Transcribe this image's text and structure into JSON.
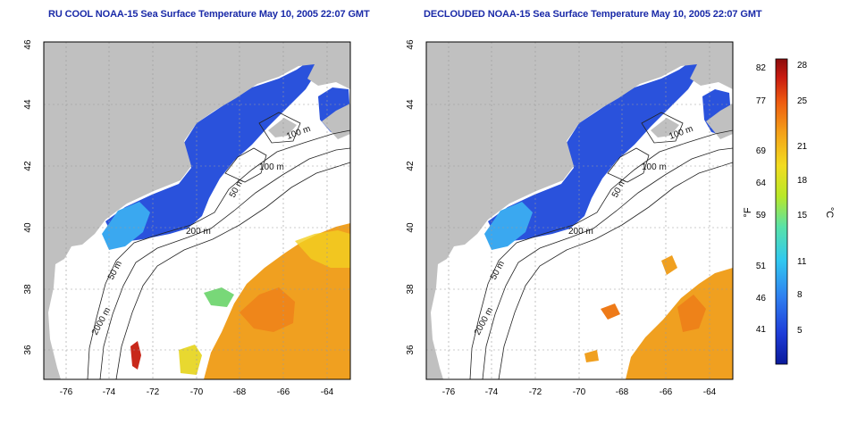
{
  "panels": [
    {
      "title": "RU COOL NOAA-15 Sea Surface Temperature May 10, 2005 22:07 GMT",
      "depth_labels": [
        "100 m",
        "100 m",
        "50 m",
        "200 m",
        "50 m",
        "2000 m"
      ]
    },
    {
      "title": "DECLOUDED NOAA-15 Sea Surface Temperature May 10, 2005 22:07 GMT",
      "depth_labels": [
        "100 m",
        "100 m",
        "50 m",
        "200 m",
        "50 m",
        "2000 m"
      ]
    }
  ],
  "x_ticks": [
    "-76",
    "-74",
    "-72",
    "-70",
    "-68",
    "-66",
    "-64"
  ],
  "y_ticks": [
    "36",
    "38",
    "40",
    "42",
    "44",
    "46"
  ],
  "colorbar": {
    "fahrenheit_unit": "°F",
    "celsius_unit": "°C",
    "fahrenheit_ticks": [
      "82",
      "77",
      "69",
      "64",
      "59",
      "51",
      "46",
      "41"
    ],
    "celsius_ticks": [
      "28",
      "25",
      "21",
      "18",
      "15",
      "11",
      "8",
      "5"
    ],
    "colors": [
      "#0a1a9a",
      "#1e3cd8",
      "#2f7ff0",
      "#30c8f0",
      "#58e2a8",
      "#b8e828",
      "#f2dc20",
      "#f4a018",
      "#ee5a10",
      "#c81a10",
      "#8c0c0c"
    ]
  },
  "colors": {
    "land": "#c0c0c0",
    "cold_water": "#2a52dc",
    "cool_water": "#3aa8f0",
    "warm_water": "#f0a020",
    "title": "#1a2aa8"
  }
}
